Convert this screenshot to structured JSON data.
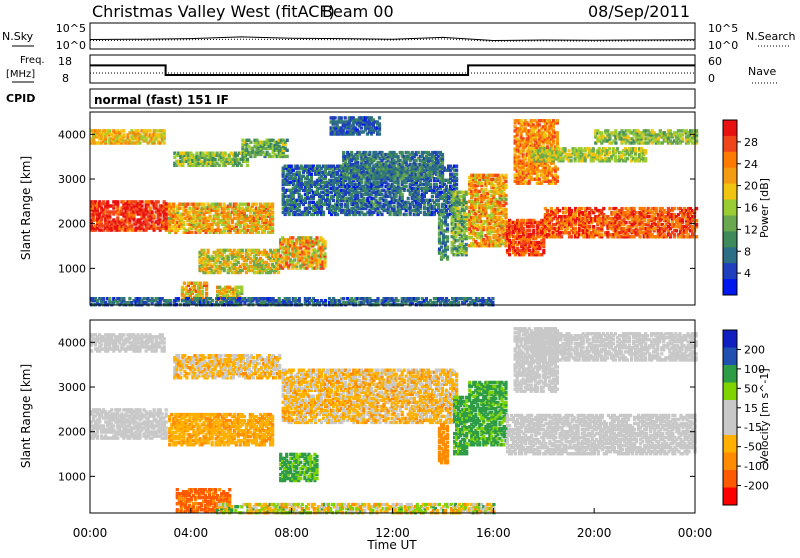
{
  "header": {
    "station": "Christmas Valley West (fitACF)",
    "beam": "Beam 00",
    "date": "08/Sep/2011"
  },
  "mode": "normal (fast) 151 IF",
  "colors": {
    "power": [
      "#0018f0",
      "#1f3fbd",
      "#2c6e86",
      "#3f8a5b",
      "#6aa84f",
      "#9acd32",
      "#f1c40f",
      "#f39c12",
      "#ff7a00",
      "#f0441a",
      "#e81010"
    ],
    "velocity": [
      "#ff0000",
      "#ff5a00",
      "#ff8c00",
      "#ffb000",
      "#c8c8c8",
      "#c8c8c8",
      "#7fd400",
      "#2e9c46",
      "#2050b0",
      "#1020c0"
    ]
  },
  "chart_data": [
    {
      "type": "line",
      "name": "noise-panel",
      "left_label": "N.Sky",
      "right_label": "N.Search",
      "y_ticks_left": [
        "10^5",
        "10^0"
      ],
      "y_ticks_right": [
        "10^5",
        "10^0"
      ],
      "scale": "log",
      "series": [
        {
          "name": "N.Sky",
          "x": [
            0,
            2,
            4,
            6,
            8,
            10,
            12,
            14,
            16,
            18,
            20,
            22,
            24
          ],
          "y": [
            50,
            60,
            80,
            200,
            100,
            80,
            60,
            150,
            30,
            40,
            35,
            40,
            45
          ]
        },
        {
          "name": "N.Search",
          "x": [
            0,
            2,
            4,
            6,
            8,
            10,
            12,
            14,
            16,
            18,
            20,
            22,
            24
          ],
          "y": [
            30,
            35,
            45,
            60,
            50,
            45,
            40,
            70,
            20,
            25,
            22,
            25,
            28
          ]
        }
      ]
    },
    {
      "type": "line",
      "name": "frequency-panel",
      "left_label": "Freq.",
      "left_unit": "[MHz]",
      "right_label": "Nave",
      "y_ticks_left": [
        "18",
        "8"
      ],
      "y_ticks_right": [
        "60",
        "0"
      ],
      "series": [
        {
          "name": "Freq",
          "x": [
            0,
            3.0,
            3.0,
            15.0,
            15.0,
            24
          ],
          "y": [
            14.5,
            14.5,
            10.5,
            10.5,
            14.5,
            14.5
          ]
        },
        {
          "name": "Nave",
          "x": [
            0,
            24
          ],
          "y": [
            20,
            20
          ]
        }
      ]
    },
    {
      "type": "heatmap",
      "name": "power-panel",
      "title": "Power [dB]",
      "ylabel": "Slant Range [km]",
      "xlim": [
        0,
        24
      ],
      "ylim": [
        180,
        4500
      ],
      "y_ticks": [
        1000,
        2000,
        3000,
        4000
      ],
      "colorbar_ticks": [
        "4",
        "8",
        "12",
        "16",
        "20",
        "24",
        "28"
      ],
      "colorbar_label": "Power [dB]"
    },
    {
      "type": "heatmap",
      "name": "velocity-panel",
      "title": "Velocity [m s^-1]",
      "ylabel": "Slant Range [km]",
      "xlabel": "Time UT",
      "xlim": [
        0,
        24
      ],
      "ylim": [
        180,
        4500
      ],
      "x_ticks": [
        "00:00",
        "04:00",
        "08:00",
        "12:00",
        "16:00",
        "20:00",
        "00:00"
      ],
      "y_ticks": [
        1000,
        2000,
        3000,
        4000
      ],
      "colorbar_ticks": [
        "200",
        "100",
        "50",
        "15",
        "-15",
        "-50",
        "-100",
        "-200"
      ],
      "colorbar_label": "Velocity [m s^-1]"
    }
  ]
}
